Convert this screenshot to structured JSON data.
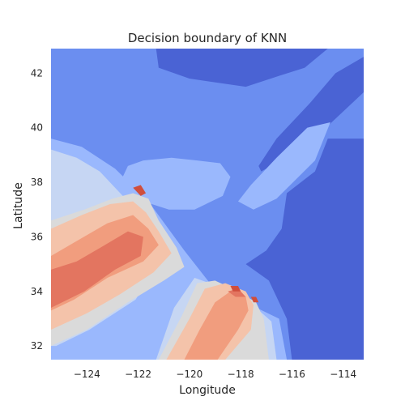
{
  "chart_data": {
    "type": "heatmap",
    "title": "Decision boundary of KNN",
    "xlabel": "Longitude",
    "ylabel": "Latitude",
    "xlim": [
      -125.4,
      -113.2
    ],
    "ylim": [
      31.5,
      42.9
    ],
    "xticks": [
      -124,
      -122,
      -120,
      -118,
      -116,
      -114
    ],
    "xtick_labels": [
      "−124",
      "−122",
      "−120",
      "−118",
      "−116",
      "−114"
    ],
    "yticks": [
      32,
      34,
      36,
      38,
      40,
      42
    ],
    "ytick_labels": [
      "32",
      "34",
      "36",
      "38",
      "40",
      "42"
    ],
    "grid": false,
    "colormap": "coolwarm",
    "palette": {
      "level_0": "#4a63d4",
      "level_1": "#6b8ef0",
      "level_2": "#9ab8fd",
      "level_3": "#c6d6f3",
      "level_4": "#dadada",
      "level_5": "#f4c3aa",
      "level_6": "#f19d7e",
      "level_7": "#e37560",
      "level_8": "#d04e3c"
    },
    "regions": [
      {
        "level": 0,
        "polygon": [
          [
            -121.3,
            42.9
          ],
          [
            -121.2,
            42.2
          ],
          [
            -120.0,
            41.8
          ],
          [
            -117.8,
            41.5
          ],
          [
            -116.5,
            41.9
          ],
          [
            -115.5,
            42.2
          ],
          [
            -114.6,
            42.9
          ]
        ]
      },
      {
        "level": 0,
        "polygon": [
          [
            -113.2,
            42.6
          ],
          [
            -114.3,
            42.0
          ],
          [
            -115.3,
            40.9
          ],
          [
            -116.6,
            39.6
          ],
          [
            -117.3,
            38.6
          ],
          [
            -117.2,
            38.4
          ],
          [
            -116.2,
            38.9
          ],
          [
            -114.9,
            39.8
          ],
          [
            -113.2,
            41.3
          ]
        ]
      },
      {
        "level": 0,
        "polygon": [
          [
            -113.2,
            39.6
          ],
          [
            -114.6,
            39.6
          ],
          [
            -115.1,
            38.4
          ],
          [
            -116.2,
            37.6
          ],
          [
            -116.4,
            36.3
          ],
          [
            -117.0,
            35.5
          ],
          [
            -117.8,
            35.0
          ],
          [
            -116.9,
            34.4
          ],
          [
            -116.2,
            33.0
          ],
          [
            -116.0,
            31.5
          ],
          [
            -113.2,
            31.5
          ]
        ]
      },
      {
        "level": 2,
        "polygon": [
          [
            -118.1,
            37.3
          ],
          [
            -117.5,
            37.0
          ],
          [
            -116.6,
            37.4
          ],
          [
            -115.1,
            38.8
          ],
          [
            -114.5,
            40.2
          ],
          [
            -115.4,
            40.0
          ],
          [
            -116.6,
            38.9
          ],
          [
            -117.6,
            37.9
          ]
        ]
      },
      {
        "level": 2,
        "polygon": [
          [
            -122.7,
            38.0
          ],
          [
            -121.8,
            37.3
          ],
          [
            -120.8,
            37.0
          ],
          [
            -119.8,
            37.0
          ],
          [
            -118.7,
            37.5
          ],
          [
            -118.4,
            38.2
          ],
          [
            -118.8,
            38.7
          ],
          [
            -119.7,
            38.8
          ],
          [
            -120.7,
            38.9
          ],
          [
            -121.8,
            38.8
          ],
          [
            -122.4,
            38.6
          ]
        ]
      },
      {
        "level": 2,
        "polygon": [
          [
            -125.4,
            39.6
          ],
          [
            -124.2,
            39.3
          ],
          [
            -122.9,
            38.5
          ],
          [
            -121.6,
            37.3
          ],
          [
            -120.2,
            35.5
          ],
          [
            -119.2,
            34.3
          ],
          [
            -117.6,
            33.5
          ],
          [
            -116.5,
            33.0
          ],
          [
            -116.2,
            31.5
          ],
          [
            -125.4,
            31.5
          ]
        ]
      },
      {
        "level": 3,
        "polygon": [
          [
            -125.4,
            39.2
          ],
          [
            -124.4,
            38.9
          ],
          [
            -123.5,
            38.4
          ],
          [
            -122.5,
            37.4
          ],
          [
            -121.5,
            36.1
          ],
          [
            -120.4,
            34.9
          ],
          [
            -120.9,
            35.6
          ],
          [
            -121.1,
            35.2
          ],
          [
            -122.1,
            33.7
          ],
          [
            -123.9,
            32.6
          ],
          [
            -125.2,
            32.0
          ],
          [
            -125.4,
            32.0
          ]
        ]
      },
      {
        "level": 3,
        "polygon": [
          [
            -121.3,
            31.5
          ],
          [
            -120.6,
            33.4
          ],
          [
            -119.8,
            34.5
          ],
          [
            -118.9,
            34.2
          ],
          [
            -118.2,
            33.9
          ],
          [
            -117.4,
            33.4
          ],
          [
            -116.8,
            32.9
          ],
          [
            -116.6,
            31.5
          ]
        ]
      },
      {
        "level": 4,
        "polygon": [
          [
            -125.4,
            36.6
          ],
          [
            -124.1,
            37.0
          ],
          [
            -123.0,
            37.4
          ],
          [
            -122.2,
            37.6
          ],
          [
            -121.6,
            37.4
          ],
          [
            -121.2,
            36.6
          ],
          [
            -120.5,
            35.6
          ],
          [
            -120.2,
            34.9
          ],
          [
            -121.0,
            34.4
          ],
          [
            -122.4,
            33.6
          ],
          [
            -124.0,
            32.6
          ],
          [
            -125.4,
            32.0
          ]
        ]
      },
      {
        "level": 4,
        "polygon": [
          [
            -121.2,
            31.5
          ],
          [
            -120.3,
            33.1
          ],
          [
            -119.7,
            34.3
          ],
          [
            -119.0,
            34.4
          ],
          [
            -118.1,
            34.0
          ],
          [
            -117.4,
            33.6
          ],
          [
            -117.1,
            33.0
          ],
          [
            -116.9,
            31.5
          ]
        ]
      },
      {
        "level": 5,
        "polygon": [
          [
            -125.4,
            36.3
          ],
          [
            -124.2,
            36.8
          ],
          [
            -123.1,
            37.2
          ],
          [
            -122.2,
            37.3
          ],
          [
            -121.7,
            36.9
          ],
          [
            -121.2,
            36.2
          ],
          [
            -120.7,
            35.4
          ],
          [
            -121.4,
            34.7
          ],
          [
            -122.7,
            33.9
          ],
          [
            -124.0,
            33.2
          ],
          [
            -125.4,
            32.6
          ]
        ]
      },
      {
        "level": 5,
        "polygon": [
          [
            -120.9,
            31.5
          ],
          [
            -120.0,
            33.0
          ],
          [
            -119.4,
            34.1
          ],
          [
            -118.6,
            34.3
          ],
          [
            -117.8,
            34.0
          ],
          [
            -117.5,
            33.5
          ],
          [
            -117.6,
            32.6
          ],
          [
            -118.6,
            31.5
          ]
        ]
      },
      {
        "level": 6,
        "polygon": [
          [
            -125.4,
            35.3
          ],
          [
            -124.3,
            35.9
          ],
          [
            -123.2,
            36.5
          ],
          [
            -122.2,
            36.8
          ],
          [
            -121.6,
            36.3
          ],
          [
            -121.2,
            35.7
          ],
          [
            -121.8,
            35.1
          ],
          [
            -123.2,
            34.5
          ],
          [
            -124.5,
            33.7
          ],
          [
            -125.4,
            33.3
          ]
        ]
      },
      {
        "level": 6,
        "polygon": [
          [
            -120.2,
            31.5
          ],
          [
            -119.6,
            32.6
          ],
          [
            -119.0,
            33.6
          ],
          [
            -118.4,
            34.0
          ],
          [
            -117.8,
            33.8
          ],
          [
            -117.7,
            33.3
          ],
          [
            -118.1,
            32.6
          ],
          [
            -118.9,
            31.5
          ]
        ]
      },
      {
        "level": 7,
        "polygon": [
          [
            -125.4,
            34.8
          ],
          [
            -124.4,
            35.1
          ],
          [
            -123.3,
            35.7
          ],
          [
            -122.4,
            36.2
          ],
          [
            -121.8,
            36.0
          ],
          [
            -121.9,
            35.3
          ],
          [
            -122.9,
            34.8
          ],
          [
            -124.1,
            34.0
          ],
          [
            -125.4,
            33.4
          ]
        ]
      },
      {
        "level": 7,
        "polygon": [
          [
            -118.5,
            34.0
          ],
          [
            -118.1,
            34.1
          ],
          [
            -117.8,
            33.8
          ],
          [
            -118.2,
            33.8
          ]
        ]
      },
      {
        "level": 8,
        "polygon": [
          [
            -122.2,
            37.8
          ],
          [
            -121.9,
            37.9
          ],
          [
            -121.7,
            37.6
          ],
          [
            -121.9,
            37.5
          ]
        ]
      },
      {
        "level": 8,
        "polygon": [
          [
            -118.4,
            34.2
          ],
          [
            -118.1,
            34.2
          ],
          [
            -118.0,
            34.0
          ],
          [
            -118.3,
            34.0
          ]
        ]
      },
      {
        "level": 8,
        "polygon": [
          [
            -117.6,
            33.8
          ],
          [
            -117.4,
            33.8
          ],
          [
            -117.3,
            33.6
          ],
          [
            -117.5,
            33.6
          ]
        ]
      }
    ]
  }
}
